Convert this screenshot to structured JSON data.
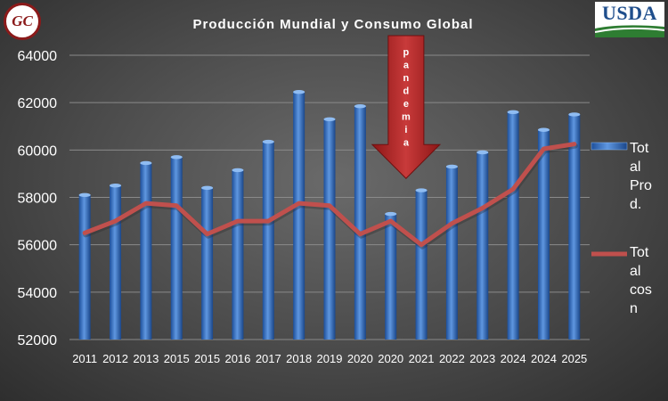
{
  "logos": {
    "left_text": "GC",
    "right_text": "USDA"
  },
  "chart_data": {
    "type": "bar",
    "title": "Producción Mundial y Consumo Global",
    "xlabel": "",
    "ylabel": "",
    "categories": [
      "2011",
      "2012",
      "2013",
      "2015",
      "2015",
      "2016",
      "2017",
      "2018",
      "2019",
      "2020",
      "2020",
      "2021",
      "2022",
      "2023",
      "2024",
      "2024",
      "2025"
    ],
    "ylim": [
      52000,
      64000
    ],
    "yticks": [
      52000,
      54000,
      56000,
      58000,
      60000,
      62000,
      64000
    ],
    "grid": true,
    "legend_position": "right",
    "series": [
      {
        "name": "Total Prod.",
        "type": "bar",
        "color": "#3f78c8",
        "values": [
          58100,
          58500,
          59450,
          59700,
          58400,
          59150,
          60350,
          62450,
          61300,
          61850,
          57300,
          58300,
          59300,
          59900,
          61600,
          60850,
          61500
        ]
      },
      {
        "name": "Total cosn",
        "type": "line",
        "color": "#c0504d",
        "values": [
          56500,
          57000,
          57750,
          57650,
          56450,
          57000,
          57000,
          57750,
          57650,
          56450,
          57000,
          56000,
          56900,
          57550,
          58350,
          60050,
          60250
        ]
      }
    ],
    "annotation": {
      "text": "pandemia",
      "color": "#b22222",
      "category_index": 10,
      "points_to_value": 58800
    }
  }
}
